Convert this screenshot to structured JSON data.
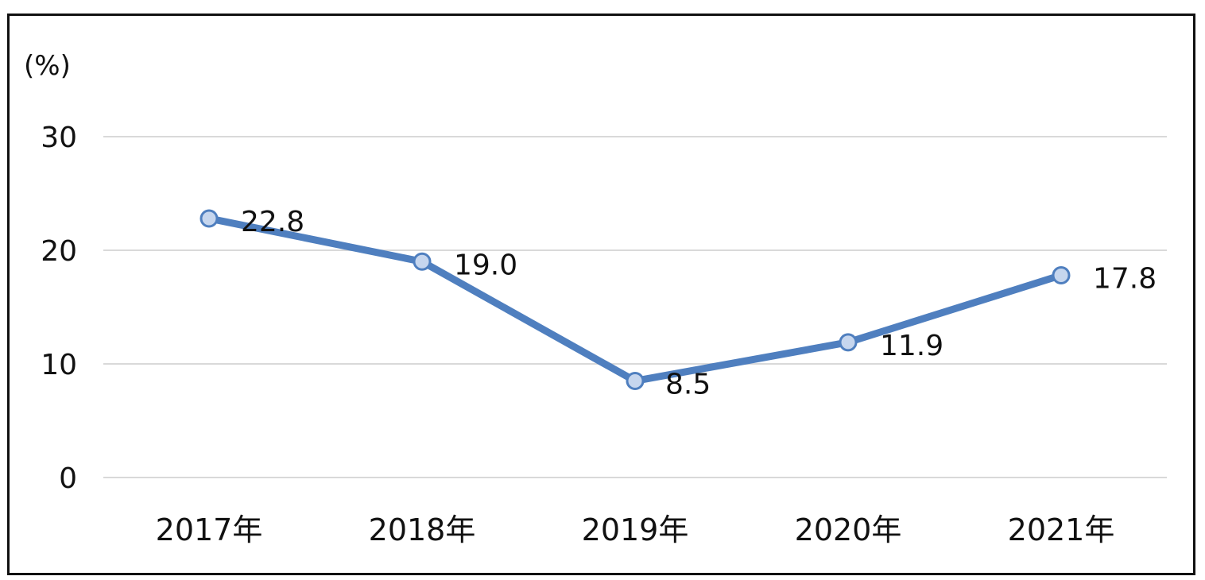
{
  "chart_data": {
    "type": "line",
    "unit_label": "(%)",
    "categories": [
      "2017年",
      "2018年",
      "2019年",
      "2020年",
      "2021年"
    ],
    "series": [
      {
        "values": [
          22.8,
          19.0,
          8.5,
          11.9,
          17.8
        ],
        "data_labels": [
          "22.8",
          "19.0",
          "8.5",
          "11.9",
          "17.8"
        ]
      }
    ],
    "ylim": [
      0,
      30
    ],
    "yticks": [
      0,
      10,
      20,
      30
    ],
    "ytick_labels": [
      "0",
      "10",
      "20",
      "30"
    ],
    "grid": true,
    "legend": "none",
    "colors": {
      "line": "#4f7fbf",
      "marker_fill": "#c6d6ee",
      "marker_stroke": "#4f7fbf",
      "grid": "#d9d9d9",
      "text": "#111111",
      "border": "#111111"
    }
  }
}
